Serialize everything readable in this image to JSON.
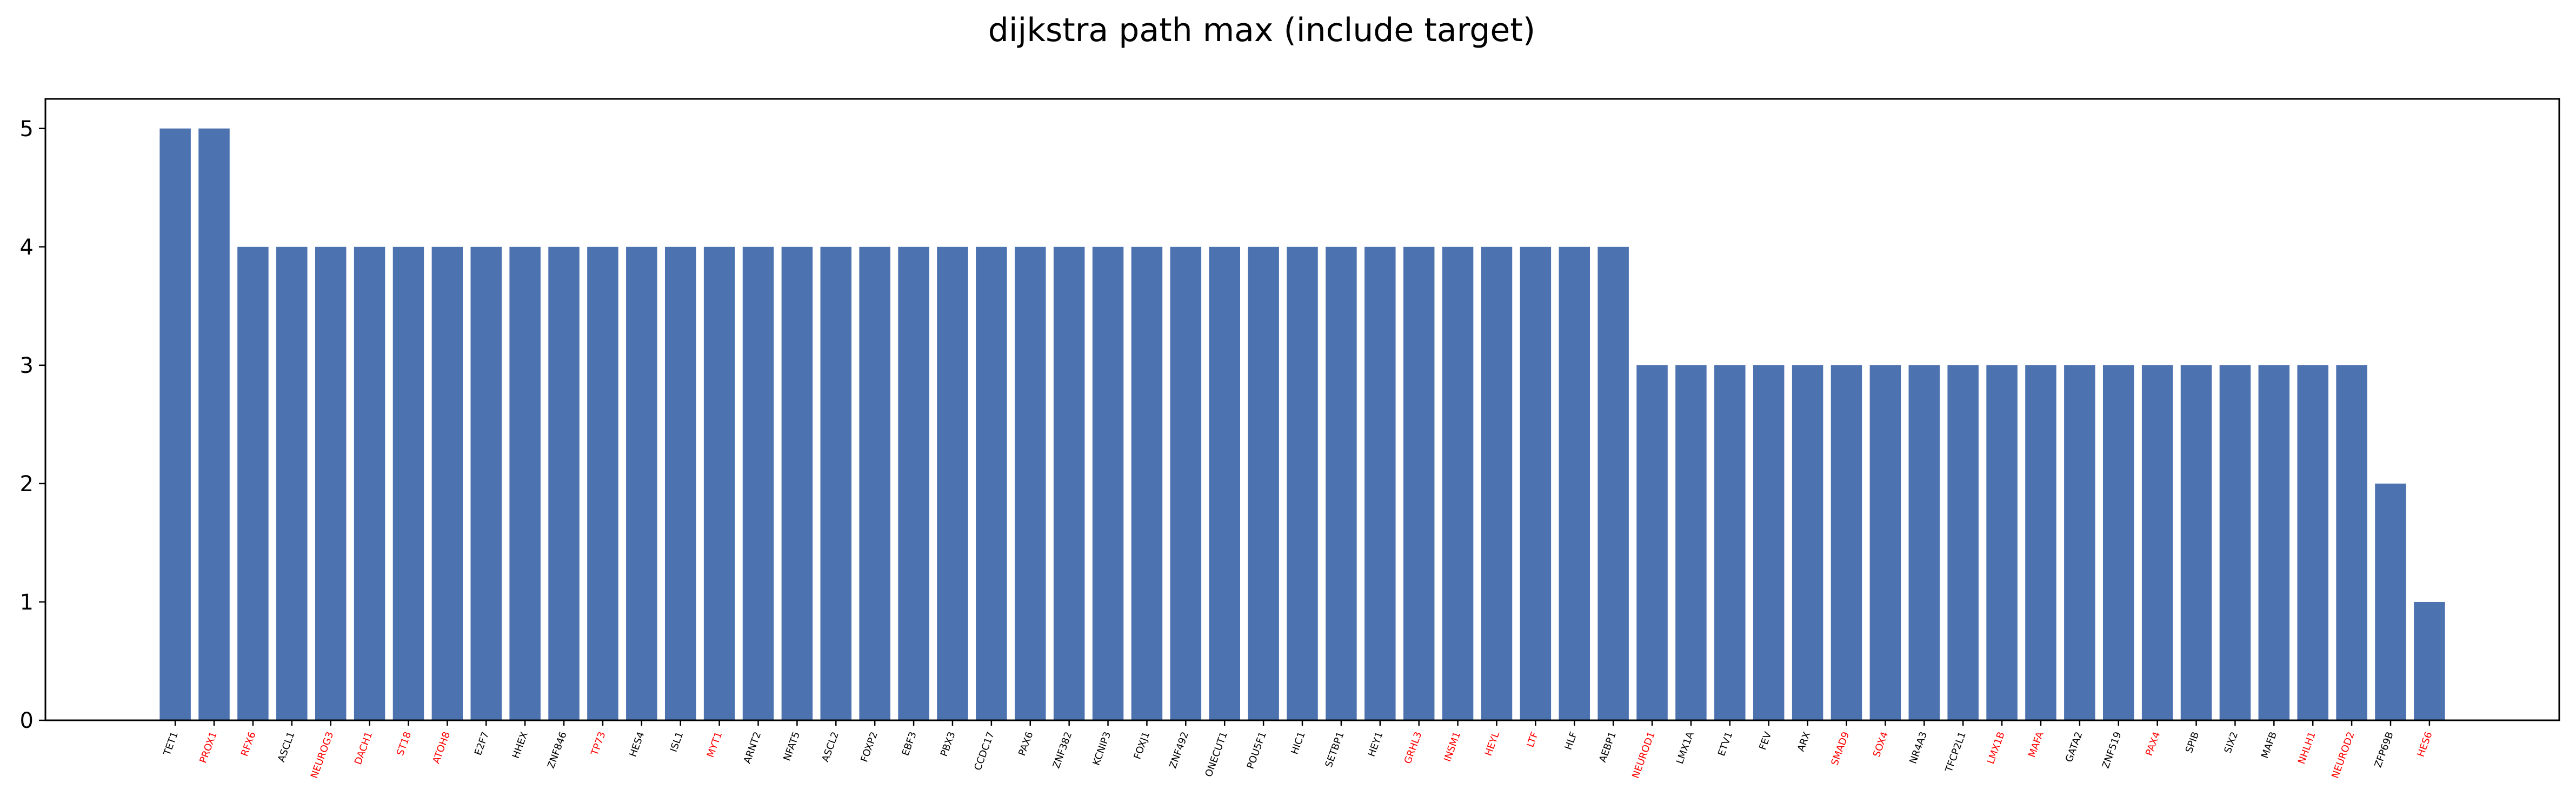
{
  "chart_data": {
    "type": "bar",
    "title": "dijkstra path max (include target)",
    "xlabel": "",
    "ylabel": "",
    "ylim": [
      0,
      5.25
    ],
    "yticks": [
      0,
      1,
      2,
      3,
      4,
      5
    ],
    "grid": false,
    "legend": "none",
    "bar_color": "#4c72b0",
    "highlight_label_color": "#ff0000",
    "normal_label_color": "#000000",
    "categories": [
      "TET1",
      "PROX1",
      "RFX6",
      "ASCL1",
      "NEUROG3",
      "DACH1",
      "ST18",
      "ATOH8",
      "E2F7",
      "HHEX",
      "ZNF846",
      "TP73",
      "HES4",
      "ISL1",
      "MYT1",
      "ARNT2",
      "NFAT5",
      "ASCL2",
      "FOXP2",
      "EBF3",
      "PBX3",
      "CCDC17",
      "PAX6",
      "ZNF382",
      "KCNIP3",
      "FOXJ1",
      "ZNF492",
      "ONECUT1",
      "POU5F1",
      "HIC1",
      "SETBP1",
      "HEY1",
      "GRHL3",
      "INSM1",
      "HEYL",
      "LTF",
      "HLF",
      "AEBP1",
      "NEUROD1",
      "LMX1A",
      "ETV1",
      "FEV",
      "ARX",
      "SMAD9",
      "SOX4",
      "NR4A3",
      "TFCP2L1",
      "LMX1B",
      "MAFA",
      "GATA2",
      "ZNF519",
      "PAX4",
      "SPIB",
      "SIX2",
      "MAFB",
      "NHLH1",
      "NEUROD2",
      "ZFP69B",
      "HES6"
    ],
    "values": [
      5,
      5,
      4,
      4,
      4,
      4,
      4,
      4,
      4,
      4,
      4,
      4,
      4,
      4,
      4,
      4,
      4,
      4,
      4,
      4,
      4,
      4,
      4,
      4,
      4,
      4,
      4,
      4,
      4,
      4,
      4,
      4,
      4,
      4,
      4,
      4,
      4,
      4,
      3,
      3,
      3,
      3,
      3,
      3,
      3,
      3,
      3,
      3,
      3,
      3,
      3,
      3,
      3,
      3,
      3,
      3,
      3,
      2,
      1
    ],
    "highlighted": [
      "PROX1",
      "RFX6",
      "NEUROG3",
      "DACH1",
      "ST18",
      "ATOH8",
      "TP73",
      "MYT1",
      "GRHL3",
      "INSM1",
      "HEYL",
      "LTF",
      "NEUROD1",
      "SMAD9",
      "SOX4",
      "LMX1B",
      "MAFA",
      "PAX4",
      "NHLH1",
      "NEUROD2",
      "HES6"
    ]
  }
}
